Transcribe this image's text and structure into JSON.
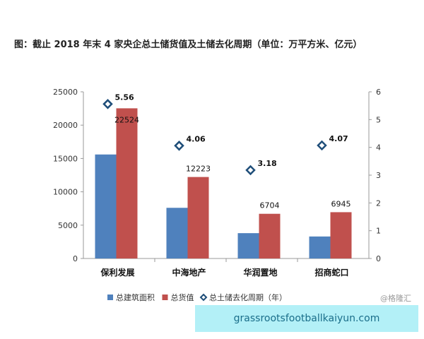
{
  "chart_data": {
    "type": "bar",
    "title": "图：截止 2018 年末 4 家央企总土储货值及土储去化周期（单位：万平方米、亿元）",
    "categories": [
      "保利发展",
      "中海地产",
      "华润置地",
      "招商蛇口"
    ],
    "series": [
      {
        "name": "总建筑面积",
        "axis": "left",
        "kind": "bar",
        "color": "#4f81bd",
        "values": [
          15600,
          7600,
          3800,
          3300
        ]
      },
      {
        "name": "总货值",
        "axis": "left",
        "kind": "bar",
        "color": "#c0504d",
        "values": [
          22524,
          12223,
          6704,
          6945
        ]
      },
      {
        "name": "总土储去化周期（年）",
        "axis": "right",
        "kind": "marker",
        "color": "#1f4e79",
        "values": [
          5.56,
          4.06,
          3.18,
          4.07
        ]
      }
    ],
    "value_labels": {
      "总货值": [
        "22524",
        "12223",
        "6704",
        "6945"
      ],
      "总土储去化周期（年）": [
        "5.56",
        "4.06",
        "3.18",
        "4.07"
      ]
    },
    "y_left": {
      "range": [
        0,
        25000
      ],
      "ticks": [
        "0",
        "5000",
        "10000",
        "15000",
        "20000",
        "25000"
      ]
    },
    "y_right": {
      "range": [
        0,
        6
      ],
      "ticks": [
        "0",
        "1",
        "2",
        "3",
        "4",
        "5",
        "6"
      ]
    },
    "legend": {
      "placement": "bottom"
    }
  },
  "watermark": "@格隆汇",
  "banner": "grassrootsfootballkaiyun.com"
}
